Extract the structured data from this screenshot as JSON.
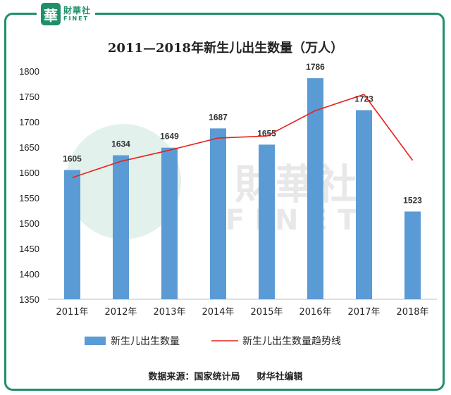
{
  "logo": {
    "badge": "華",
    "name_cn": "財華社",
    "name_en": "FINET"
  },
  "watermark": {
    "name_cn": "財華社",
    "name_en": "FINET"
  },
  "source": {
    "text": "数据来源：国家统计局",
    "editor": "财华社编辑"
  },
  "colors": {
    "bar": "#5b9bd5",
    "trend": "#e8221c",
    "border": "#1f8f6a"
  },
  "chart_data": {
    "type": "bar",
    "title": "2011—2018年新生儿出生数量（万人）",
    "categories": [
      "2011年",
      "2012年",
      "2013年",
      "2014年",
      "2015年",
      "2016年",
      "2017年",
      "2018年"
    ],
    "series": [
      {
        "name": "新生儿出生数量",
        "type": "bar",
        "values": [
          1605,
          1634,
          1649,
          1687,
          1655,
          1786,
          1723,
          1523
        ]
      },
      {
        "name": "新生儿出生数量趋势线",
        "type": "line",
        "values": [
          1590,
          1622,
          1644,
          1668,
          1672,
          1722,
          1754,
          1624
        ]
      }
    ],
    "ylim": [
      1350,
      1800
    ],
    "yticks": [
      1350,
      1400,
      1450,
      1500,
      1550,
      1600,
      1650,
      1700,
      1750,
      1800
    ],
    "grid": false,
    "legend_position": "bottom"
  }
}
